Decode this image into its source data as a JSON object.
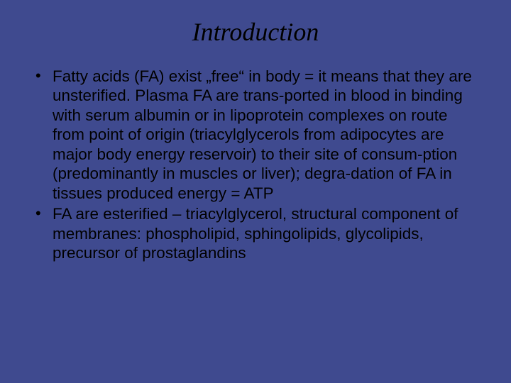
{
  "background_color": "#3f4a8f",
  "text_color": "#000000",
  "slide": {
    "title": "Introduction",
    "title_fontsize": 36,
    "title_fontstyle": "italic",
    "title_font": "Times New Roman",
    "body_fontsize": 22.5,
    "body_font": "Arial",
    "line_height": 1.22,
    "bullets": [
      "Fatty acids (FA) exist „free“ in body = it means that they are unsterified. Plasma FA are trans-ported in blood in binding with serum albumin or in lipoprotein  complexes on route from point of origin (triacylglycerols from adipocytes are major body energy reservoir) to their site of consum-ption (predominantly in  muscles or liver); degra-dation of FA in tissues produced energy = ATP",
      "FA are esterified – triacylglycerol, structural component of membranes: phospholipid, sphingolipids, glycolipids, precursor of prostaglandins"
    ]
  }
}
